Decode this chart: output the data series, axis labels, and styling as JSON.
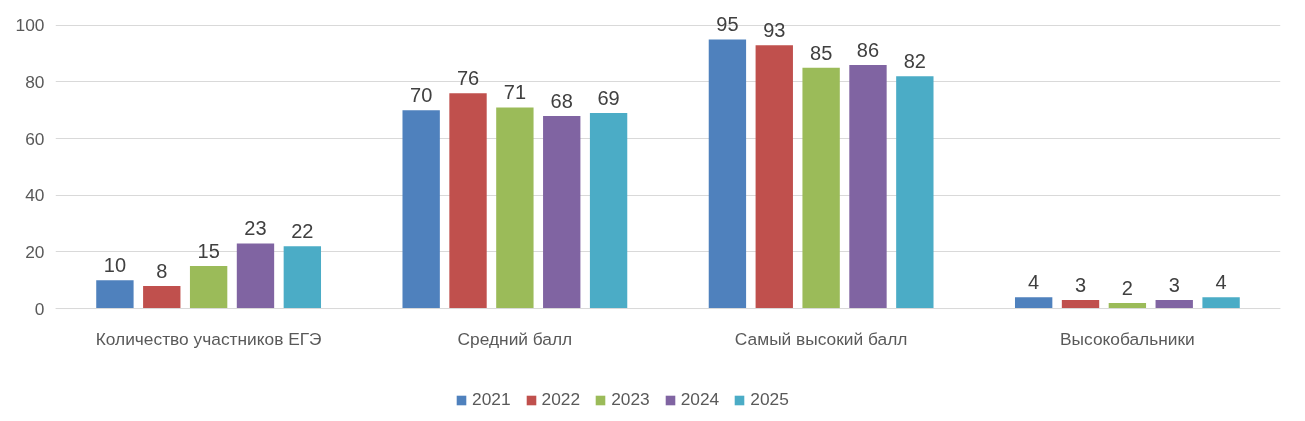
{
  "chart_data": {
    "type": "bar",
    "categories": [
      "Количество участников ЕГЭ",
      "Средний балл",
      "Самый высокий балл",
      "Высокобальники"
    ],
    "series": [
      {
        "name": "2021",
        "color": "#4f81bd",
        "values": [
          10,
          70,
          95,
          4
        ]
      },
      {
        "name": "2022",
        "color": "#c0504d",
        "values": [
          8,
          76,
          93,
          3
        ]
      },
      {
        "name": "2023",
        "color": "#9bbb59",
        "values": [
          15,
          71,
          85,
          2
        ]
      },
      {
        "name": "2024",
        "color": "#8064a2",
        "values": [
          23,
          68,
          86,
          3
        ]
      },
      {
        "name": "2025",
        "color": "#4bacc6",
        "values": [
          22,
          69,
          82,
          4
        ]
      }
    ],
    "ylim": [
      0,
      100
    ],
    "yticks": [
      0,
      20,
      40,
      60,
      80,
      100
    ],
    "grid": "y",
    "legend": "bottom",
    "data_labels": true
  }
}
